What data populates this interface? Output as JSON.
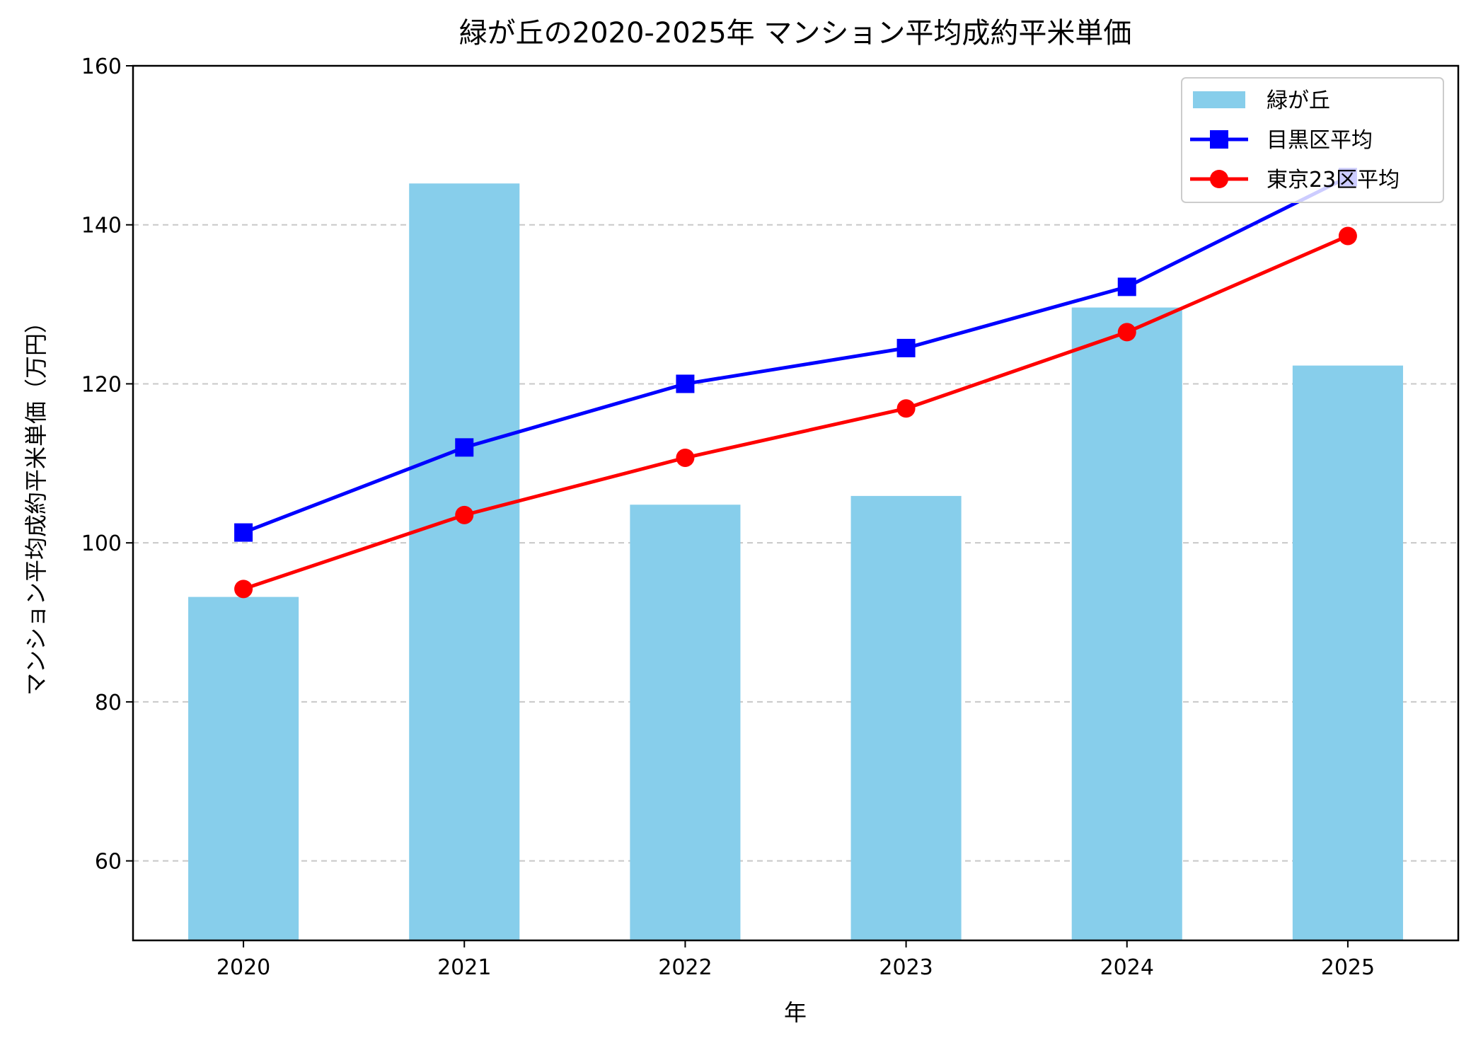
{
  "chart_data": {
    "type": "bar+line",
    "title": "緑が丘の2020-2025年 マンション平均成約平米単価",
    "xlabel": "年",
    "ylabel": "マンション平均成約平米単価（万円）",
    "categories": [
      "2020",
      "2021",
      "2022",
      "2023",
      "2024",
      "2025"
    ],
    "ylim": [
      50,
      160
    ],
    "yticks": [
      60,
      80,
      100,
      120,
      140,
      160
    ],
    "grid": "y-dashed",
    "legend_position": "top-right",
    "series": [
      {
        "name": "緑が丘",
        "kind": "bar",
        "color": "#87CEEB",
        "values": [
          93.2,
          145.2,
          104.8,
          105.9,
          129.6,
          122.3
        ]
      },
      {
        "name": "目黒区平均",
        "kind": "line",
        "marker": "square",
        "color": "#0000FF",
        "values": [
          101.3,
          112.0,
          120.0,
          124.5,
          132.2,
          146.0
        ]
      },
      {
        "name": "東京23区平均",
        "kind": "line",
        "marker": "circle",
        "color": "#FF0000",
        "values": [
          94.2,
          103.5,
          110.7,
          116.9,
          126.5,
          138.6
        ]
      }
    ]
  }
}
